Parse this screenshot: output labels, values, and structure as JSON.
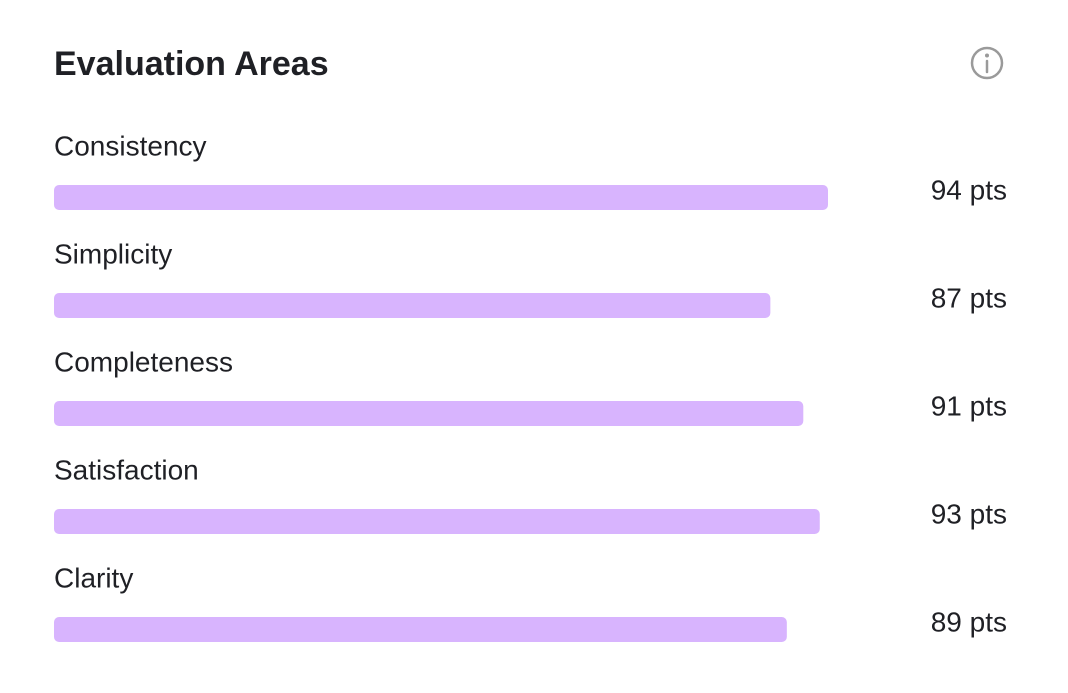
{
  "chart_data": {
    "type": "bar",
    "title": "Evaluation Areas",
    "categories": [
      "Consistency",
      "Simplicity",
      "Completeness",
      "Satisfaction",
      "Clarity"
    ],
    "values": [
      94,
      87,
      91,
      93,
      89
    ],
    "value_labels": [
      "94 pts",
      "87 pts",
      "91 pts",
      "93 pts",
      "89 pts"
    ],
    "color": "#d8b4fe"
  }
}
